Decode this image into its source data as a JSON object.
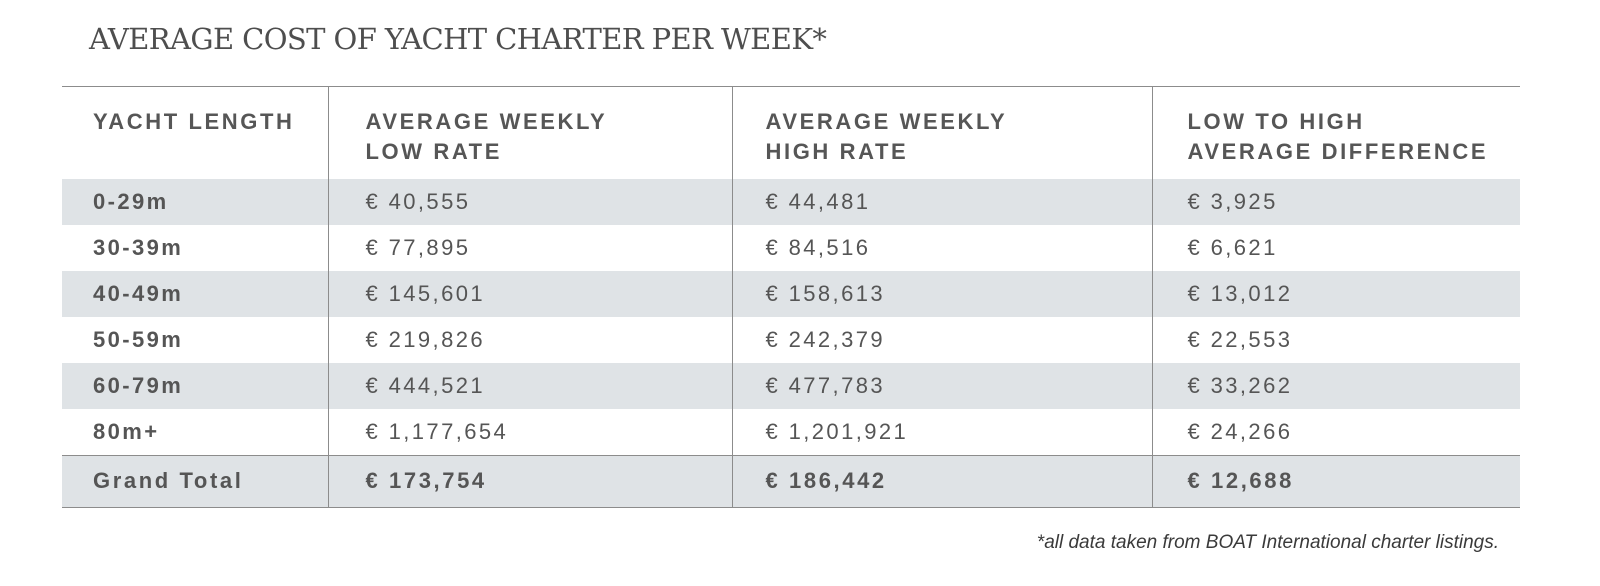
{
  "title": "AVERAGE COST OF YACHT CHARTER PER WEEK*",
  "table": {
    "headers": [
      {
        "line1": "YACHT LENGTH",
        "line2": ""
      },
      {
        "line1": "AVERAGE WEEKLY",
        "line2": "LOW RATE"
      },
      {
        "line1": "AVERAGE WEEKLY",
        "line2": "HIGH RATE"
      },
      {
        "line1": "LOW TO HIGH",
        "line2": "AVERAGE DIFFERENCE"
      }
    ],
    "rows": [
      [
        "0-29m",
        "€ 40,555",
        "€ 44,481",
        "€ 3,925"
      ],
      [
        "30-39m",
        "€ 77,895",
        "€ 84,516",
        "€ 6,621"
      ],
      [
        "40-49m",
        "€ 145,601",
        "€ 158,613",
        "€ 13,012"
      ],
      [
        "50-59m",
        "€ 219,826",
        "€ 242,379",
        "€ 22,553"
      ],
      [
        "60-79m",
        "€ 444,521",
        "€ 477,783",
        "€ 33,262"
      ],
      [
        "80m+",
        "€ 1,177,654",
        "€ 1,201,921",
        "€ 24,266"
      ]
    ],
    "total": [
      "Grand Total",
      "€ 173,754",
      "€ 186,442",
      "€ 12,688"
    ]
  },
  "footnote": "*all data taken from BOAT International charter listings.",
  "colors": {
    "row_shade": "#dfe3e6",
    "rule": "#8c8c8c",
    "text": "#555555"
  }
}
